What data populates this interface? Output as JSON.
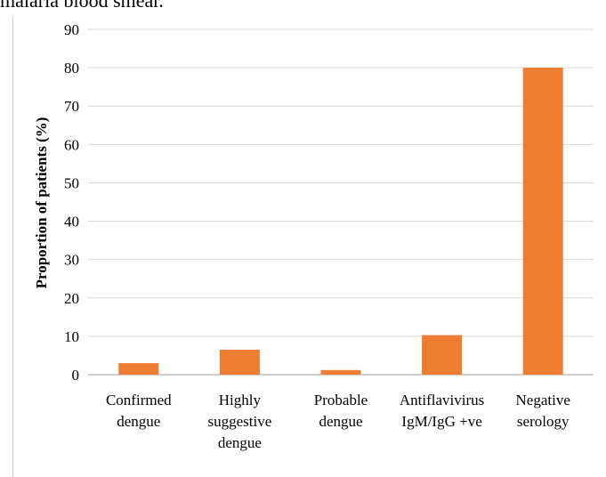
{
  "caption_fragment": "malaria blood smear.",
  "chart_data": {
    "type": "bar",
    "categories": [
      [
        "Confirmed",
        "dengue"
      ],
      [
        "Highly",
        "suggestive",
        "dengue"
      ],
      [
        "Probable",
        "dengue"
      ],
      [
        "Antiflavivirus",
        "IgM/IgG +ve"
      ],
      [
        "Negative",
        "serology"
      ]
    ],
    "values": [
      3,
      6.5,
      1.2,
      10.3,
      80
    ],
    "ylabel": "Proportion of patients (%)",
    "xlabel": "",
    "ylim": [
      0,
      90
    ],
    "yticks": [
      0,
      10,
      20,
      30,
      40,
      50,
      60,
      70,
      80,
      90
    ],
    "grid": true,
    "bar_color": "#ed7d31",
    "grid_color": "#d9d9d9",
    "axis_color": "#bfbfbf"
  }
}
